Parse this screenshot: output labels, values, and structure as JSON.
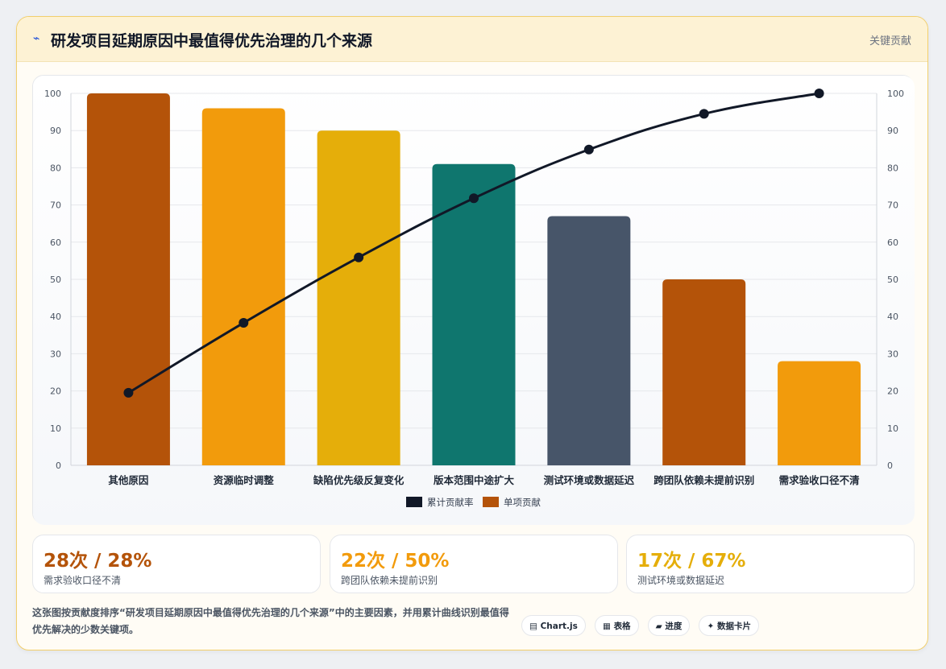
{
  "header": {
    "icon": "⌁",
    "title": "研发项目延期原因中最值得优先治理的几个来源",
    "tag": "关键贡献"
  },
  "chart_data": {
    "type": "bar",
    "categories": [
      "其他原因",
      "资源临时调整",
      "缺陷优先级反复变化",
      "版本范围中途扩大",
      "测试环境或数据延迟",
      "跨团队依赖未提前识别",
      "需求验收口径不清"
    ],
    "series": [
      {
        "name": "单项贡献",
        "type": "bar",
        "values": [
          100,
          96,
          90,
          81,
          67,
          50,
          28
        ],
        "colors": [
          "#b45309",
          "#f29b0c",
          "#e5ae0a",
          "#0f766e",
          "#475569",
          "#b45309",
          "#f29b0c"
        ]
      },
      {
        "name": "累计贡献率",
        "type": "line",
        "values": [
          19.5,
          38.3,
          55.9,
          71.8,
          84.9,
          94.5,
          100
        ],
        "color": "#111827"
      }
    ],
    "ylim": [
      0,
      100
    ],
    "y_ticks": [
      0,
      10,
      20,
      30,
      40,
      50,
      60,
      70,
      80,
      90,
      100
    ],
    "legend": [
      {
        "label": "累计贡献率",
        "color": "#111827"
      },
      {
        "label": "单项贡献",
        "color": "#b45309"
      }
    ],
    "legend_position": "bottom",
    "grid": true
  },
  "stats": [
    {
      "value": "28次 / 28%",
      "label": "需求验收口径不清",
      "color": "#b45309"
    },
    {
      "value": "22次 / 50%",
      "label": "跨团队依赖未提前识别",
      "color": "#f29b0c"
    },
    {
      "value": "17次 / 67%",
      "label": "测试环境或数据延迟",
      "color": "#e5ae0a"
    }
  ],
  "footnote": "这张图按贡献度排序“研发项目延期原因中最值得优先治理的几个来源”中的主要因素，并用累计曲线识别最值得优先解决的少数关键项。",
  "chips": [
    {
      "icon": "▤",
      "label": "Chart.js"
    },
    {
      "icon": "▦",
      "label": "表格"
    },
    {
      "icon": "▰",
      "label": "进度"
    },
    {
      "icon": "✦",
      "label": "数据卡片"
    }
  ]
}
